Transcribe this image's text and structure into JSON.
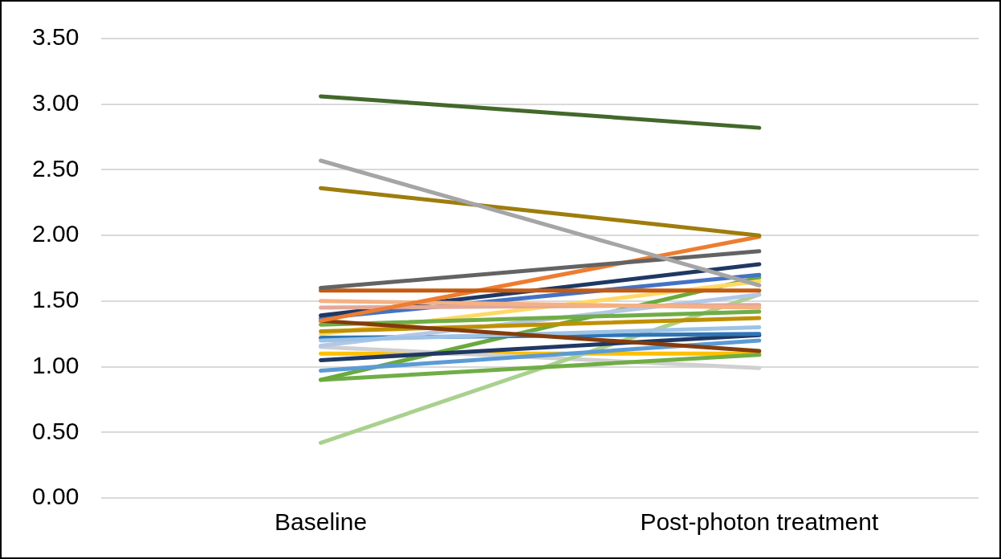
{
  "chart_data": {
    "type": "line",
    "categories": [
      "Baseline",
      "Post-photon treatment"
    ],
    "ylim": [
      0,
      3.5
    ],
    "yticks": [
      {
        "value": 0,
        "label": "0.00"
      },
      {
        "value": 0.5,
        "label": "0.50"
      },
      {
        "value": 1,
        "label": "1.00"
      },
      {
        "value": 1.5,
        "label": "1.50"
      },
      {
        "value": 2,
        "label": "2.00"
      },
      {
        "value": 2.5,
        "label": "2.50"
      },
      {
        "value": 3,
        "label": "3.00"
      },
      {
        "value": 3.5,
        "label": "3.50"
      }
    ],
    "grid": "y",
    "legend": false,
    "marker": "none",
    "line_style": "solid",
    "series": [
      {
        "color": "#43682b",
        "values": [
          3.06,
          2.82
        ]
      },
      {
        "color": "#a5a5a5",
        "values": [
          2.57,
          1.62
        ]
      },
      {
        "color": "#9e7d0d",
        "values": [
          2.36,
          2.0
        ]
      },
      {
        "color": "#636363",
        "values": [
          1.6,
          1.88
        ]
      },
      {
        "color": "#c55a11",
        "values": [
          1.58,
          1.58
        ]
      },
      {
        "color": "#ed7d31",
        "values": [
          1.35,
          1.99
        ]
      },
      {
        "color": "#f4b183",
        "values": [
          1.5,
          1.45
        ]
      },
      {
        "color": "#e4a89a",
        "values": [
          1.45,
          1.47
        ]
      },
      {
        "color": "#1f3864",
        "values": [
          1.39,
          1.78
        ]
      },
      {
        "color": "#4472c4",
        "values": [
          1.37,
          1.7
        ]
      },
      {
        "color": "#843c0c",
        "values": [
          1.35,
          1.12
        ]
      },
      {
        "color": "#70ad47",
        "values": [
          1.32,
          1.42
        ]
      },
      {
        "color": "#bf9000",
        "values": [
          1.27,
          1.37
        ]
      },
      {
        "color": "#ffd966",
        "values": [
          1.25,
          1.65
        ]
      },
      {
        "color": "#9dc3e6",
        "values": [
          1.2,
          1.3
        ]
      },
      {
        "color": "#b4c7e7",
        "values": [
          1.16,
          1.55
        ]
      },
      {
        "color": "#2e75b6",
        "values": [
          1.22,
          1.25
        ]
      },
      {
        "color": "#203864",
        "values": [
          1.05,
          1.24
        ]
      },
      {
        "color": "#5b9bd5",
        "values": [
          0.97,
          1.2
        ]
      },
      {
        "color": "#6aaa3c",
        "values": [
          0.9,
          1.68
        ]
      },
      {
        "color": "#70ad47",
        "values": [
          0.9,
          1.09
        ]
      },
      {
        "color": "#a9d18e",
        "values": [
          0.42,
          1.55
        ]
      },
      {
        "color": "#d0d0d0",
        "values": [
          1.15,
          0.99
        ]
      },
      {
        "color": "#ffc000",
        "values": [
          1.1,
          1.1
        ]
      }
    ]
  }
}
